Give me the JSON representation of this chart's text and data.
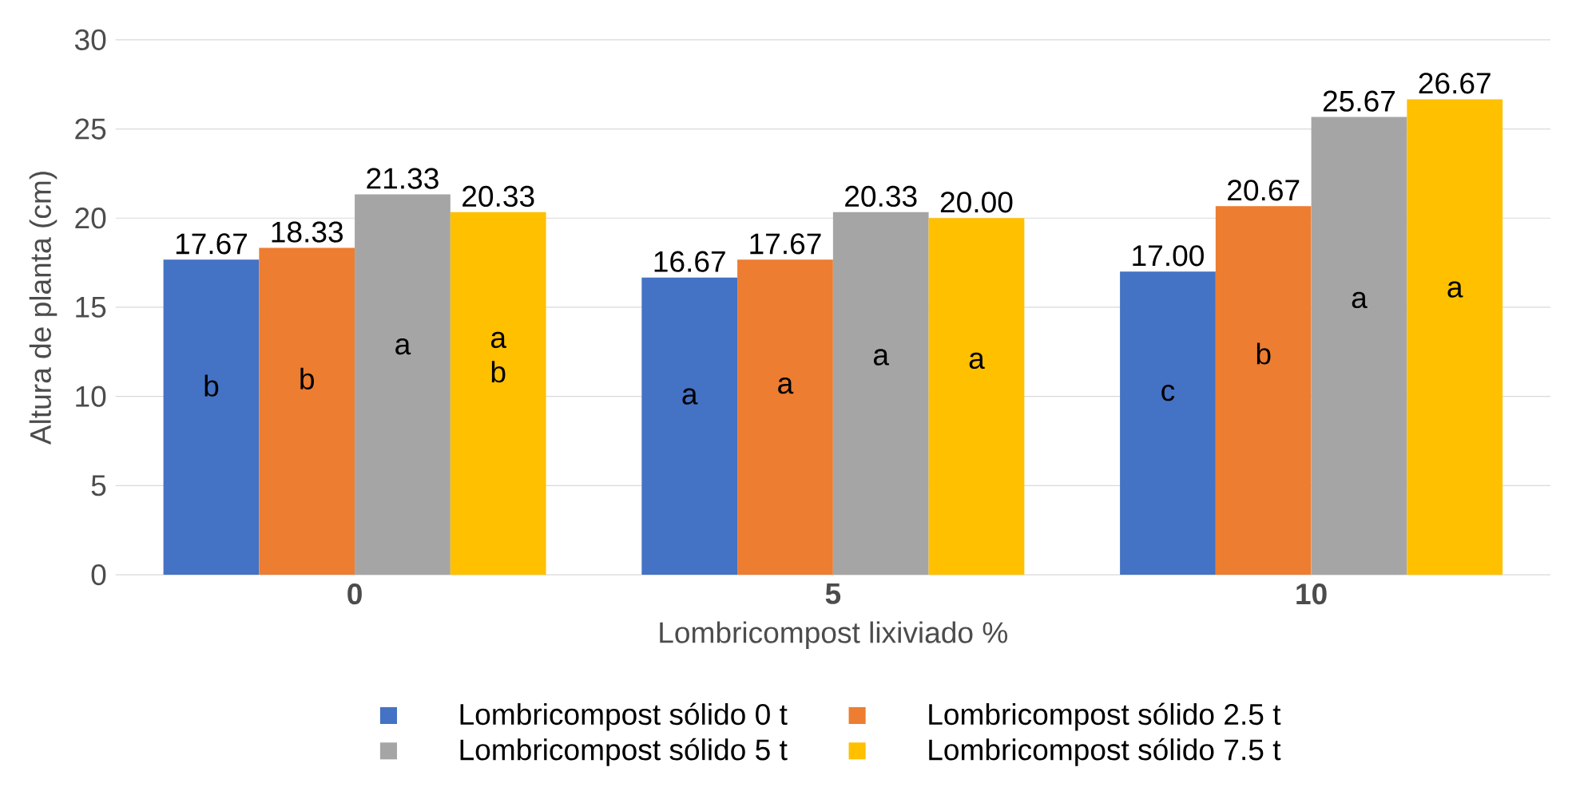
{
  "chart_data": {
    "type": "bar",
    "xlabel": "Lombricompost lixiviado %",
    "ylabel": "Altura de planta (cm)",
    "categories": [
      "0",
      "5",
      "10"
    ],
    "series": [
      {
        "name": "Lombricompost sólido 0 t",
        "color": "#4472c4",
        "values": [
          17.67,
          16.67,
          17.0
        ],
        "value_labels": [
          "17.67",
          "16.67",
          "17.00"
        ]
      },
      {
        "name": "Lombricompost sólido 2.5 t",
        "color": "#ed7d31",
        "values": [
          18.33,
          17.67,
          20.67
        ],
        "value_labels": [
          "18.33",
          "17.67",
          "20.67"
        ]
      },
      {
        "name": "Lombricompost sólido 5 t",
        "color": "#a5a5a5",
        "values": [
          21.33,
          20.33,
          25.67
        ],
        "value_labels": [
          "21.33",
          "20.33",
          "25.67"
        ]
      },
      {
        "name": "Lombricompost sólido 7.5 t",
        "color": "#ffc000",
        "values": [
          20.33,
          20.0,
          26.67
        ],
        "value_labels": [
          "20.33",
          "20.00",
          "26.67"
        ]
      }
    ],
    "annotations": [
      "b",
      "b",
      "a",
      "a b",
      "a",
      "a",
      "a",
      "a",
      "c",
      "b",
      "a",
      "a"
    ],
    "ylim": [
      0,
      30
    ],
    "yticks": [
      0,
      5,
      10,
      15,
      20,
      25,
      30
    ],
    "grid": "y",
    "legend": "bottom"
  }
}
